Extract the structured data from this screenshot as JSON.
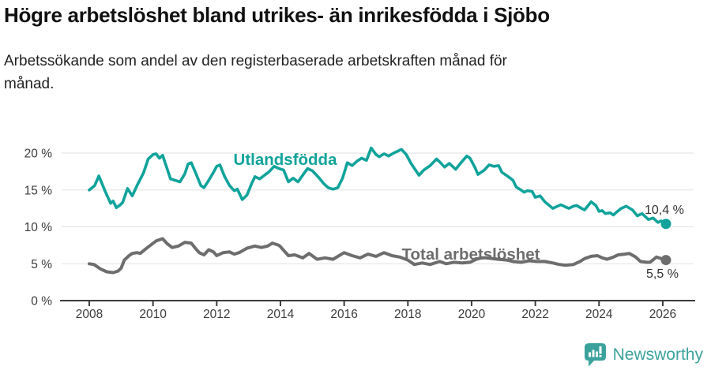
{
  "title": "Högre arbetslöshet bland utrikes- än inrikesfödda i Sjöbo",
  "subtitle": "Arbetssökande som andel av den registerbaserade arbetskraften månad för månad.",
  "branding": {
    "logo_text": "Newsworthy",
    "logo_color": "#3aa29b"
  },
  "colors": {
    "series_foreign": "#10a39b",
    "series_total": "#6d6d6d",
    "grid": "#e2e2e2",
    "axis": "#3c3c3c",
    "axis_text": "#3c3c3c",
    "value_label_text": "#333333"
  },
  "chart_data": {
    "type": "line",
    "title": "Högre arbetslöshet bland utrikes- än inrikesfödda i Sjöbo",
    "subtitle": "Arbetssökande som andel av den registerbaserade arbetskraften månad för månad.",
    "grid": true,
    "legend_position": "inline-labels",
    "xlim": [
      2007.15,
      2027.0
    ],
    "ylim": [
      0,
      21.5
    ],
    "x_tick_years": [
      2008,
      2010,
      2012,
      2014,
      2016,
      2018,
      2020,
      2022,
      2024,
      2026
    ],
    "x_tick_labels": [
      "2008",
      "2010",
      "2012",
      "2014",
      "2016",
      "2018",
      "2020",
      "2022",
      "2024",
      "2026"
    ],
    "y_tick_values": [
      0,
      5,
      10,
      15,
      20
    ],
    "y_tick_labels": [
      "0 %",
      "5 %",
      "10 %",
      "15 %",
      "20 %"
    ],
    "series": [
      {
        "name": "Utlandsfödda",
        "color": "#10a39b",
        "end_label": "10,4 %",
        "end_value": 10.4,
        "points": [
          [
            2008.0,
            15.0
          ],
          [
            2008.17,
            15.6
          ],
          [
            2008.3,
            16.9
          ],
          [
            2008.5,
            14.8
          ],
          [
            2008.67,
            13.2
          ],
          [
            2008.75,
            13.5
          ],
          [
            2008.85,
            12.6
          ],
          [
            2008.95,
            12.9
          ],
          [
            2009.05,
            13.3
          ],
          [
            2009.2,
            15.2
          ],
          [
            2009.35,
            14.2
          ],
          [
            2009.5,
            15.6
          ],
          [
            2009.7,
            17.3
          ],
          [
            2009.85,
            19.2
          ],
          [
            2010.0,
            19.8
          ],
          [
            2010.1,
            19.9
          ],
          [
            2010.2,
            19.3
          ],
          [
            2010.3,
            19.7
          ],
          [
            2010.45,
            17.8
          ],
          [
            2010.55,
            16.5
          ],
          [
            2010.7,
            16.3
          ],
          [
            2010.85,
            16.1
          ],
          [
            2011.0,
            17.2
          ],
          [
            2011.1,
            18.5
          ],
          [
            2011.2,
            18.7
          ],
          [
            2011.35,
            17.2
          ],
          [
            2011.5,
            15.6
          ],
          [
            2011.6,
            15.3
          ],
          [
            2011.75,
            16.3
          ],
          [
            2011.9,
            17.4
          ],
          [
            2012.0,
            18.2
          ],
          [
            2012.1,
            18.4
          ],
          [
            2012.25,
            16.8
          ],
          [
            2012.4,
            15.6
          ],
          [
            2012.55,
            14.9
          ],
          [
            2012.65,
            15.1
          ],
          [
            2012.8,
            13.7
          ],
          [
            2012.95,
            14.3
          ],
          [
            2013.1,
            15.9
          ],
          [
            2013.2,
            16.8
          ],
          [
            2013.35,
            16.5
          ],
          [
            2013.5,
            17.0
          ],
          [
            2013.65,
            17.5
          ],
          [
            2013.8,
            18.2
          ],
          [
            2013.95,
            17.9
          ],
          [
            2014.1,
            17.7
          ],
          [
            2014.25,
            16.1
          ],
          [
            2014.4,
            16.6
          ],
          [
            2014.55,
            16.1
          ],
          [
            2014.7,
            17.0
          ],
          [
            2014.85,
            17.9
          ],
          [
            2015.0,
            17.6
          ],
          [
            2015.2,
            16.7
          ],
          [
            2015.35,
            15.9
          ],
          [
            2015.5,
            15.3
          ],
          [
            2015.65,
            15.1
          ],
          [
            2015.8,
            15.3
          ],
          [
            2015.95,
            16.6
          ],
          [
            2016.1,
            18.7
          ],
          [
            2016.25,
            18.3
          ],
          [
            2016.4,
            18.9
          ],
          [
            2016.55,
            19.3
          ],
          [
            2016.7,
            19.0
          ],
          [
            2016.85,
            20.7
          ],
          [
            2017.0,
            19.8
          ],
          [
            2017.1,
            19.5
          ],
          [
            2017.25,
            19.9
          ],
          [
            2017.4,
            19.6
          ],
          [
            2017.55,
            20.0
          ],
          [
            2017.7,
            20.3
          ],
          [
            2017.8,
            20.5
          ],
          [
            2017.95,
            19.8
          ],
          [
            2018.1,
            18.6
          ],
          [
            2018.35,
            17.0
          ],
          [
            2018.5,
            17.7
          ],
          [
            2018.7,
            18.3
          ],
          [
            2018.9,
            19.2
          ],
          [
            2019.0,
            18.8
          ],
          [
            2019.15,
            18.1
          ],
          [
            2019.3,
            18.6
          ],
          [
            2019.5,
            17.8
          ],
          [
            2019.65,
            18.6
          ],
          [
            2019.85,
            19.6
          ],
          [
            2019.95,
            19.3
          ],
          [
            2020.1,
            18.1
          ],
          [
            2020.2,
            17.1
          ],
          [
            2020.4,
            17.7
          ],
          [
            2020.55,
            18.4
          ],
          [
            2020.7,
            18.2
          ],
          [
            2020.85,
            18.3
          ],
          [
            2020.95,
            17.4
          ],
          [
            2021.15,
            16.8
          ],
          [
            2021.3,
            16.3
          ],
          [
            2021.4,
            15.4
          ],
          [
            2021.55,
            15.0
          ],
          [
            2021.65,
            14.7
          ],
          [
            2021.75,
            14.9
          ],
          [
            2021.9,
            14.8
          ],
          [
            2022.0,
            14.0
          ],
          [
            2022.15,
            14.2
          ],
          [
            2022.3,
            13.4
          ],
          [
            2022.55,
            12.5
          ],
          [
            2022.7,
            12.8
          ],
          [
            2022.8,
            13.0
          ],
          [
            2022.95,
            12.7
          ],
          [
            2023.05,
            12.5
          ],
          [
            2023.2,
            12.8
          ],
          [
            2023.3,
            12.9
          ],
          [
            2023.45,
            12.5
          ],
          [
            2023.55,
            12.3
          ],
          [
            2023.75,
            13.4
          ],
          [
            2023.9,
            12.9
          ],
          [
            2024.0,
            12.1
          ],
          [
            2024.1,
            12.2
          ],
          [
            2024.2,
            11.8
          ],
          [
            2024.35,
            11.9
          ],
          [
            2024.45,
            11.6
          ],
          [
            2024.55,
            12.0
          ],
          [
            2024.7,
            12.5
          ],
          [
            2024.85,
            12.8
          ],
          [
            2025.05,
            12.3
          ],
          [
            2025.2,
            11.5
          ],
          [
            2025.35,
            11.8
          ],
          [
            2025.55,
            11.0
          ],
          [
            2025.7,
            11.2
          ],
          [
            2025.85,
            10.6
          ],
          [
            2025.95,
            10.8
          ],
          [
            2026.1,
            10.4
          ]
        ]
      },
      {
        "name": "Total arbetslöshet",
        "color": "#6d6d6d",
        "end_label": "5,5 %",
        "end_value": 5.5,
        "points": [
          [
            2008.0,
            5.0
          ],
          [
            2008.15,
            4.9
          ],
          [
            2008.35,
            4.3
          ],
          [
            2008.55,
            3.9
          ],
          [
            2008.75,
            3.8
          ],
          [
            2008.9,
            4.0
          ],
          [
            2009.0,
            4.4
          ],
          [
            2009.1,
            5.5
          ],
          [
            2009.25,
            6.1
          ],
          [
            2009.35,
            6.4
          ],
          [
            2009.5,
            6.5
          ],
          [
            2009.6,
            6.4
          ],
          [
            2009.8,
            7.1
          ],
          [
            2009.95,
            7.6
          ],
          [
            2010.1,
            8.1
          ],
          [
            2010.3,
            8.4
          ],
          [
            2010.45,
            7.7
          ],
          [
            2010.6,
            7.2
          ],
          [
            2010.8,
            7.4
          ],
          [
            2011.0,
            7.9
          ],
          [
            2011.2,
            7.8
          ],
          [
            2011.35,
            7.0
          ],
          [
            2011.45,
            6.5
          ],
          [
            2011.6,
            6.2
          ],
          [
            2011.75,
            6.9
          ],
          [
            2011.9,
            6.6
          ],
          [
            2012.0,
            6.1
          ],
          [
            2012.2,
            6.5
          ],
          [
            2012.4,
            6.6
          ],
          [
            2012.55,
            6.3
          ],
          [
            2012.7,
            6.5
          ],
          [
            2012.95,
            7.1
          ],
          [
            2013.2,
            7.4
          ],
          [
            2013.4,
            7.2
          ],
          [
            2013.6,
            7.4
          ],
          [
            2013.75,
            7.8
          ],
          [
            2013.95,
            7.5
          ],
          [
            2014.0,
            7.3
          ],
          [
            2014.25,
            6.1
          ],
          [
            2014.45,
            6.2
          ],
          [
            2014.7,
            5.8
          ],
          [
            2014.9,
            6.4
          ],
          [
            2015.15,
            5.6
          ],
          [
            2015.4,
            5.8
          ],
          [
            2015.65,
            5.6
          ],
          [
            2016.0,
            6.5
          ],
          [
            2016.25,
            6.1
          ],
          [
            2016.5,
            5.8
          ],
          [
            2016.75,
            6.3
          ],
          [
            2017.0,
            6.0
          ],
          [
            2017.25,
            6.5
          ],
          [
            2017.5,
            6.1
          ],
          [
            2017.75,
            5.9
          ],
          [
            2018.0,
            5.5
          ],
          [
            2018.2,
            4.9
          ],
          [
            2018.45,
            5.1
          ],
          [
            2018.7,
            4.9
          ],
          [
            2019.0,
            5.3
          ],
          [
            2019.2,
            5.0
          ],
          [
            2019.45,
            5.2
          ],
          [
            2019.7,
            5.1
          ],
          [
            2019.95,
            5.2
          ],
          [
            2020.15,
            5.6
          ],
          [
            2020.3,
            5.8
          ],
          [
            2020.45,
            5.8
          ],
          [
            2020.65,
            5.7
          ],
          [
            2020.85,
            5.6
          ],
          [
            2021.1,
            5.5
          ],
          [
            2021.3,
            5.3
          ],
          [
            2021.55,
            5.2
          ],
          [
            2021.8,
            5.4
          ],
          [
            2022.05,
            5.3
          ],
          [
            2022.3,
            5.3
          ],
          [
            2022.55,
            5.1
          ],
          [
            2022.75,
            4.9
          ],
          [
            2022.95,
            4.8
          ],
          [
            2023.2,
            4.9
          ],
          [
            2023.4,
            5.3
          ],
          [
            2023.55,
            5.7
          ],
          [
            2023.75,
            6.0
          ],
          [
            2023.95,
            6.1
          ],
          [
            2024.1,
            5.8
          ],
          [
            2024.25,
            5.6
          ],
          [
            2024.45,
            5.9
          ],
          [
            2024.6,
            6.2
          ],
          [
            2024.8,
            6.3
          ],
          [
            2024.95,
            6.4
          ],
          [
            2025.15,
            5.9
          ],
          [
            2025.3,
            5.3
          ],
          [
            2025.5,
            5.2
          ],
          [
            2025.6,
            5.2
          ],
          [
            2025.8,
            5.9
          ],
          [
            2025.95,
            5.7
          ],
          [
            2026.1,
            5.5
          ]
        ]
      }
    ]
  }
}
